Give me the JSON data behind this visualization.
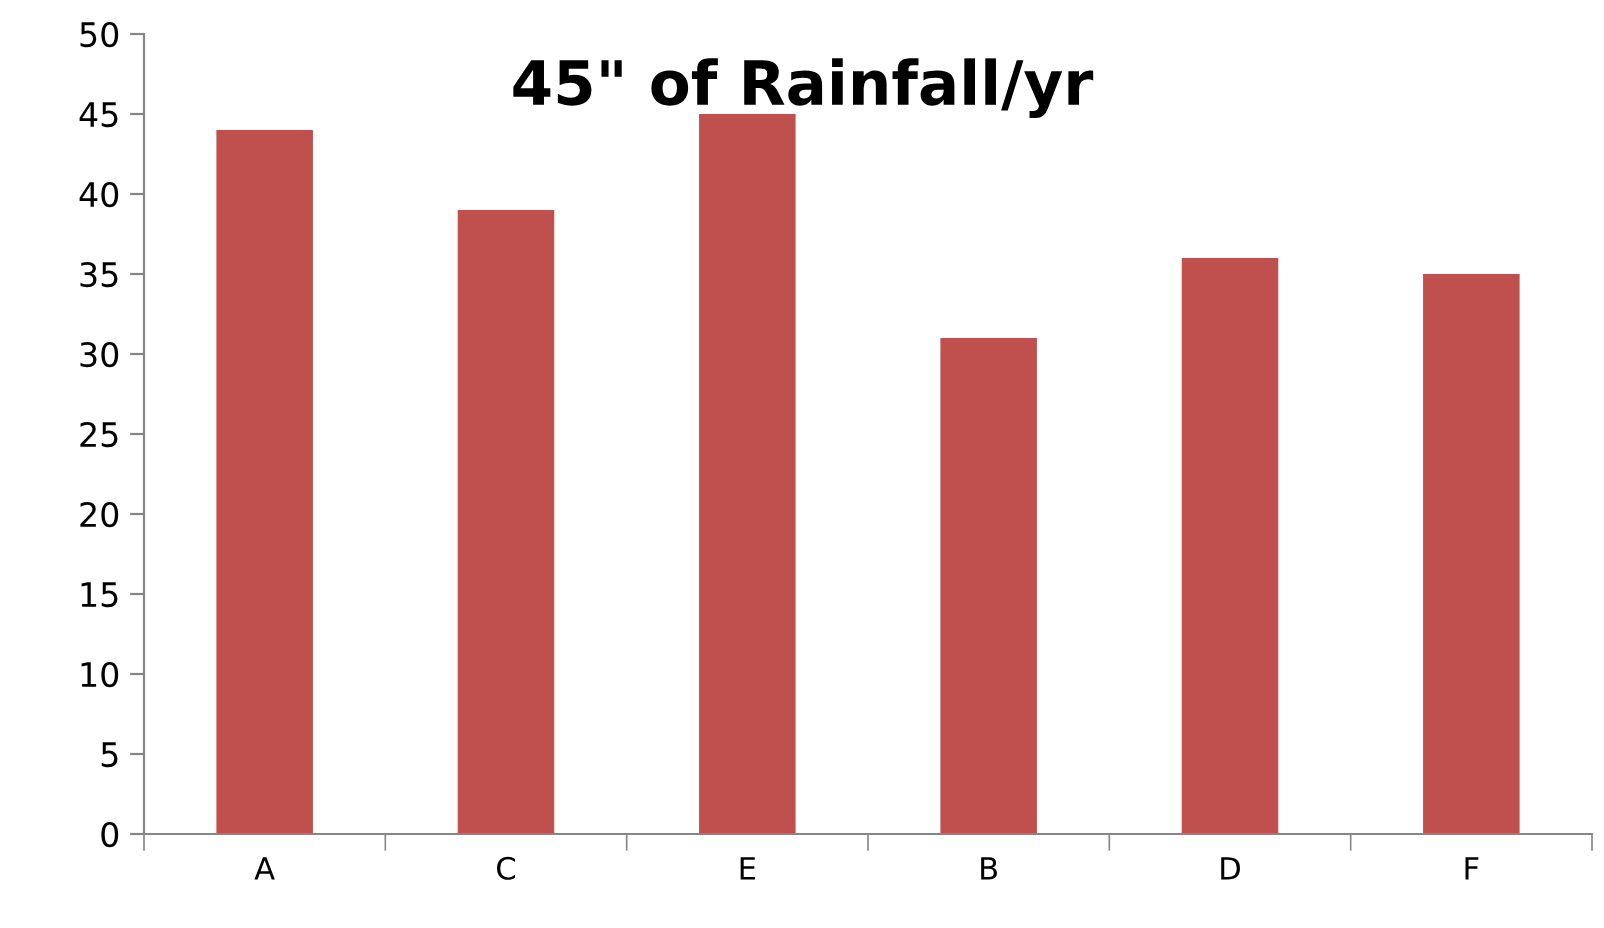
{
  "chart_data": {
    "type": "bar",
    "title": "45\" of Rainfall/yr",
    "categories": [
      "A",
      "C",
      "E",
      "B",
      "D",
      "F"
    ],
    "values": [
      44,
      39,
      45,
      31,
      36,
      35
    ],
    "color": "#c0504d",
    "ylim": [
      0,
      50
    ],
    "yticks": [
      0,
      5,
      10,
      15,
      20,
      25,
      30,
      35,
      40,
      45,
      50
    ],
    "grid": false,
    "legend": false
  }
}
